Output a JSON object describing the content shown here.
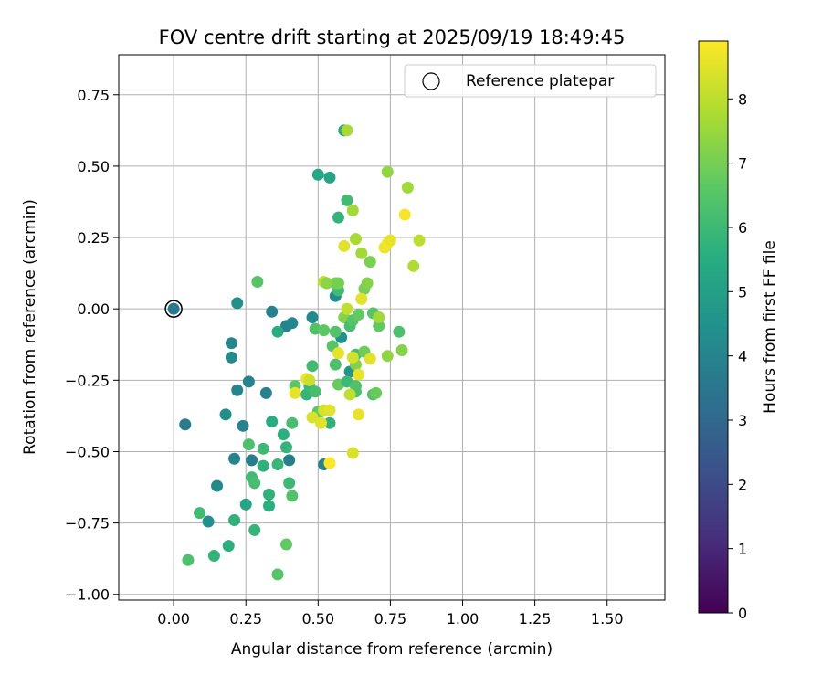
{
  "chart_data": {
    "type": "scatter",
    "title": "FOV centre drift starting at 2025/09/19 18:49:45",
    "xlabel": "Angular distance from reference (arcmin)",
    "ylabel": "Rotation from reference (arcmin)",
    "xlim": [
      -0.19,
      1.7
    ],
    "ylim": [
      -1.02,
      0.89
    ],
    "xticks": [
      0.0,
      0.25,
      0.5,
      0.75,
      1.0,
      1.25,
      1.5
    ],
    "xtick_labels": [
      "0.00",
      "0.25",
      "0.50",
      "0.75",
      "1.00",
      "1.25",
      "1.50"
    ],
    "yticks": [
      0.75,
      0.5,
      0.25,
      0.0,
      -0.25,
      -0.5,
      -0.75,
      -1.0
    ],
    "ytick_labels": [
      "0.75",
      "0.50",
      "0.25",
      "0.00",
      "−0.25",
      "−0.50",
      "−0.75",
      "−1.00"
    ],
    "grid": true,
    "colormap": "viridis",
    "legend": {
      "label": "Reference platepar",
      "placement": "top-right"
    },
    "reference_point": [
      0.0,
      0.0
    ],
    "colorbar": {
      "label": "Hours from first FF file",
      "min": 0,
      "max": 8.9,
      "ticks": [
        0,
        1,
        2,
        3,
        4,
        5,
        6,
        7,
        8
      ],
      "tick_labels": [
        "0",
        "1",
        "2",
        "3",
        "4",
        "5",
        "6",
        "7",
        "8"
      ]
    },
    "points": [
      [
        0.0,
        0.0,
        3.6
      ],
      [
        0.04,
        -0.405,
        3.7
      ],
      [
        0.12,
        -0.745,
        4.4
      ],
      [
        0.15,
        -0.62,
        4.2
      ],
      [
        0.18,
        -0.37,
        4.4
      ],
      [
        0.2,
        -0.12,
        4.1
      ],
      [
        0.2,
        -0.17,
        4.2
      ],
      [
        0.21,
        -0.525,
        4.0
      ],
      [
        0.22,
        0.02,
        4.5
      ],
      [
        0.22,
        -0.285,
        4.0
      ],
      [
        0.24,
        -0.41,
        3.9
      ],
      [
        0.26,
        -0.255,
        3.9
      ],
      [
        0.27,
        -0.53,
        3.8
      ],
      [
        0.32,
        -0.295,
        3.9
      ],
      [
        0.34,
        -0.01,
        3.9
      ],
      [
        0.39,
        -0.06,
        4.0
      ],
      [
        0.41,
        -0.05,
        4.1
      ],
      [
        0.4,
        -0.53,
        3.8
      ],
      [
        0.52,
        -0.545,
        3.9
      ],
      [
        0.48,
        -0.03,
        4.2
      ],
      [
        0.56,
        0.045,
        4.3
      ],
      [
        0.58,
        -0.1,
        4.5
      ],
      [
        0.61,
        -0.22,
        4.6
      ],
      [
        0.05,
        -0.88,
        6.3
      ],
      [
        0.09,
        -0.715,
        6.1
      ],
      [
        0.14,
        -0.865,
        5.8
      ],
      [
        0.19,
        -0.83,
        5.6
      ],
      [
        0.21,
        -0.74,
        5.7
      ],
      [
        0.25,
        -0.685,
        5.2
      ],
      [
        0.28,
        -0.775,
        5.8
      ],
      [
        0.26,
        -0.475,
        6.3
      ],
      [
        0.27,
        -0.59,
        6.1
      ],
      [
        0.28,
        -0.61,
        6.2
      ],
      [
        0.29,
        0.095,
        6.5
      ],
      [
        0.31,
        -0.55,
        5.7
      ],
      [
        0.31,
        -0.49,
        6.0
      ],
      [
        0.33,
        -0.65,
        5.7
      ],
      [
        0.33,
        -0.69,
        5.6
      ],
      [
        0.34,
        -0.395,
        5.5
      ],
      [
        0.36,
        -0.08,
        5.5
      ],
      [
        0.36,
        -0.545,
        5.9
      ],
      [
        0.36,
        -0.93,
        6.5
      ],
      [
        0.38,
        -0.44,
        5.6
      ],
      [
        0.39,
        -0.485,
        5.8
      ],
      [
        0.39,
        -0.825,
        6.7
      ],
      [
        0.4,
        -0.61,
        6.0
      ],
      [
        0.41,
        -0.4,
        6.2
      ],
      [
        0.41,
        -0.655,
        6.4
      ],
      [
        0.42,
        -0.27,
        6.6
      ],
      [
        0.46,
        -0.3,
        5.8
      ],
      [
        0.47,
        -0.27,
        6.0
      ],
      [
        0.48,
        -0.2,
        6.1
      ],
      [
        0.49,
        -0.07,
        6.4
      ],
      [
        0.49,
        -0.29,
        6.2
      ],
      [
        0.5,
        0.47,
        5.3
      ],
      [
        0.5,
        -0.36,
        6.5
      ],
      [
        0.51,
        -0.36,
        6.8
      ],
      [
        0.52,
        -0.075,
        6.6
      ],
      [
        0.54,
        0.46,
        5.2
      ],
      [
        0.54,
        -0.4,
        5.7
      ],
      [
        0.55,
        -0.13,
        6.5
      ],
      [
        0.56,
        -0.08,
        6.4
      ],
      [
        0.56,
        -0.195,
        6.3
      ],
      [
        0.57,
        -0.265,
        6.8
      ],
      [
        0.57,
        0.065,
        6.1
      ],
      [
        0.57,
        0.32,
        5.8
      ],
      [
        0.59,
        0.625,
        5.3
      ],
      [
        0.59,
        -0.03,
        7.2
      ],
      [
        0.6,
        0.38,
        6.1
      ],
      [
        0.6,
        -0.255,
        6.0
      ],
      [
        0.61,
        -0.06,
        6.2
      ],
      [
        0.62,
        -0.04,
        6.5
      ],
      [
        0.63,
        -0.27,
        6.4
      ],
      [
        0.63,
        -0.29,
        6.3
      ],
      [
        0.63,
        -0.16,
        6.2
      ],
      [
        0.63,
        -0.195,
        7.2
      ],
      [
        0.64,
        -0.02,
        6.7
      ],
      [
        0.66,
        -0.15,
        6.9
      ],
      [
        0.66,
        0.07,
        7.0
      ],
      [
        0.67,
        0.09,
        7.2
      ],
      [
        0.68,
        0.165,
        7.1
      ],
      [
        0.69,
        -0.015,
        6.5
      ],
      [
        0.69,
        -0.3,
        6.4
      ],
      [
        0.7,
        -0.295,
        6.8
      ],
      [
        0.71,
        -0.06,
        6.7
      ],
      [
        0.71,
        -0.03,
        7.6
      ],
      [
        0.74,
        0.48,
        7.4
      ],
      [
        0.74,
        -0.165,
        7.4
      ],
      [
        0.78,
        -0.08,
        6.3
      ],
      [
        0.79,
        -0.145,
        7.2
      ],
      [
        0.81,
        0.425,
        7.6
      ],
      [
        0.83,
        0.15,
        7.8
      ],
      [
        0.85,
        0.24,
        8.0
      ],
      [
        0.6,
        0.625,
        7.7
      ],
      [
        0.62,
        0.345,
        7.6
      ],
      [
        0.63,
        0.245,
        7.7
      ],
      [
        0.65,
        0.195,
        7.6
      ],
      [
        0.56,
        0.09,
        6.9
      ],
      [
        0.57,
        0.09,
        7.0
      ],
      [
        0.52,
        0.095,
        8.1
      ],
      [
        0.53,
        0.09,
        7.3
      ],
      [
        0.59,
        0.22,
        8.5
      ],
      [
        0.6,
        0.0,
        8.1
      ],
      [
        0.61,
        -0.3,
        8.1
      ],
      [
        0.62,
        -0.505,
        8.4
      ],
      [
        0.62,
        -0.17,
        8.3
      ],
      [
        0.64,
        -0.23,
        8.6
      ],
      [
        0.64,
        -0.37,
        8.6
      ],
      [
        0.65,
        0.035,
        8.5
      ],
      [
        0.68,
        -0.175,
        8.5
      ],
      [
        0.73,
        0.215,
        8.7
      ],
      [
        0.74,
        0.23,
        8.8
      ],
      [
        0.75,
        0.24,
        8.6
      ],
      [
        0.8,
        0.33,
        8.8
      ],
      [
        0.57,
        -0.155,
        8.6
      ],
      [
        0.48,
        -0.38,
        8.4
      ],
      [
        0.51,
        -0.4,
        8.5
      ],
      [
        0.52,
        -0.355,
        8.3
      ],
      [
        0.46,
        -0.245,
        8.7
      ],
      [
        0.42,
        -0.295,
        8.6
      ],
      [
        0.47,
        -0.25,
        8.2
      ],
      [
        0.54,
        -0.355,
        8.5
      ],
      [
        0.54,
        -0.54,
        8.9
      ]
    ]
  }
}
